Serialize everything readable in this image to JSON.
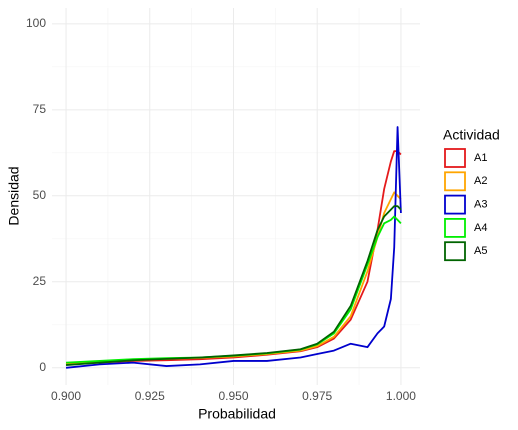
{
  "chart_data": {
    "type": "line",
    "x_label": "Probabilidad",
    "y_label": "Densidad",
    "legend_title": "Actividad",
    "legend": "right",
    "grid": true,
    "xlim": [
      0.8958,
      1.0057
    ],
    "xticks": [
      {
        "value": 0.9,
        "label": "0.900"
      },
      {
        "value": 0.925,
        "label": "0.925"
      },
      {
        "value": 0.95,
        "label": "0.950"
      },
      {
        "value": 0.975,
        "label": "0.975"
      },
      {
        "value": 1.0,
        "label": "1.000"
      }
    ],
    "ylim": [
      -5,
      104.6
    ],
    "yticks": [
      0,
      25,
      50,
      75,
      100
    ],
    "x": [
      0.9,
      0.91,
      0.92,
      0.93,
      0.94,
      0.95,
      0.96,
      0.97,
      0.975,
      0.98,
      0.985,
      0.99,
      0.993,
      0.995,
      0.997,
      0.998,
      0.999,
      1.0
    ],
    "series": [
      {
        "name": "A1",
        "color": "#e41a1c",
        "values": [
          1,
          1.5,
          2,
          2.2,
          2.5,
          3,
          3.8,
          4.8,
          6,
          8.5,
          14,
          25,
          40,
          52,
          60,
          63,
          63,
          62
        ]
      },
      {
        "name": "A2",
        "color": "#ffa500",
        "values": [
          1.2,
          1.8,
          2.3,
          2.6,
          2.9,
          3.3,
          4,
          5,
          6.3,
          9,
          15,
          28,
          38,
          45,
          49,
          51,
          50,
          49
        ]
      },
      {
        "name": "A3",
        "color": "#0000cd",
        "values": [
          0,
          1,
          1.5,
          0.5,
          1,
          2,
          2,
          3,
          4,
          5,
          7,
          6,
          10,
          12,
          20,
          35,
          70,
          45
        ]
      },
      {
        "name": "A4",
        "color": "#00ee00",
        "values": [
          1.5,
          2,
          2.5,
          2.8,
          3,
          3.5,
          4.2,
          5.3,
          6.8,
          10,
          17,
          30,
          38,
          42,
          43,
          44,
          43,
          42
        ]
      },
      {
        "name": "A5",
        "color": "#006400",
        "values": [
          0.8,
          1.5,
          2.2,
          2.6,
          3,
          3.6,
          4.3,
          5.4,
          7,
          10.5,
          18,
          31,
          40,
          44,
          46,
          47,
          47,
          46
        ]
      }
    ]
  }
}
